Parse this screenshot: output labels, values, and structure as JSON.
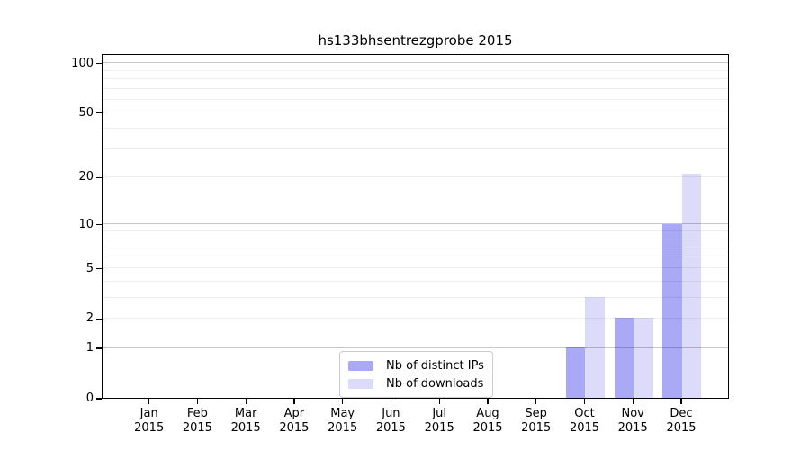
{
  "chart_data": {
    "type": "bar",
    "title": "hs133bhsentrezgprobe 2015",
    "categories": [
      "Jan",
      "Feb",
      "Mar",
      "Apr",
      "May",
      "Jun",
      "Jul",
      "Aug",
      "Sep",
      "Oct",
      "Nov",
      "Dec"
    ],
    "category_year": "2015",
    "series": [
      {
        "name": "Nb of distinct IPs",
        "color": "#a9a9f6",
        "values": [
          0,
          0,
          0,
          0,
          0,
          0,
          0,
          0,
          0,
          1,
          2,
          10
        ]
      },
      {
        "name": "Nb of downloads",
        "color": "#dcdcfa",
        "values": [
          0,
          0,
          0,
          0,
          0,
          0,
          0,
          0,
          0,
          3,
          2,
          21
        ]
      }
    ],
    "y_scale": "log10(1+x)",
    "y_ticks": [
      0,
      1,
      2,
      5,
      10,
      20,
      50,
      100
    ],
    "ylim": [
      0,
      113
    ],
    "grid": true,
    "grid_major_values": [
      1,
      10,
      100
    ],
    "grid_minor_values": [
      2,
      3,
      4,
      5,
      6,
      7,
      8,
      9,
      20,
      30,
      40,
      50,
      60,
      70,
      80,
      90
    ],
    "legend_position": "bottom-center",
    "xlabel": "",
    "ylabel": ""
  }
}
